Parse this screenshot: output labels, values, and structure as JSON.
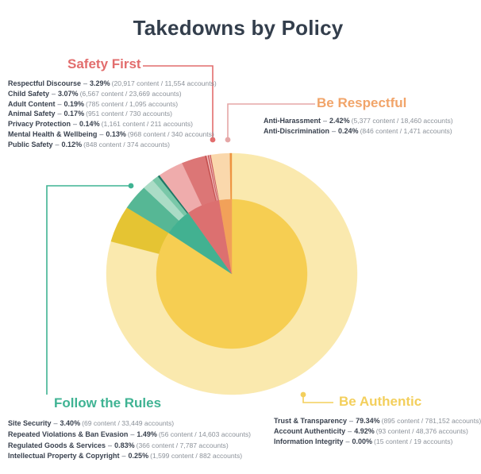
{
  "separator": "–",
  "chart_data": {
    "type": "pie",
    "variant": "two-level donut: inner disc = category totals, outer ring = individual policies",
    "title": "Takedowns by Policy",
    "units": "% of takedowns",
    "legend_position": "category labels with leader lines around chart",
    "order": [
      "be_authentic",
      "follow_the_rules",
      "safety_first",
      "be_respectful"
    ],
    "groups": {
      "safety_first": {
        "name": "Safety First",
        "label_color": "#E26D6D",
        "inner_color": "#DC7070",
        "leader_color": "#E26D6D",
        "total_pct": 7.11,
        "policies": [
          {
            "label": "Respectful Discourse",
            "pct": "3.29%",
            "value": 3.29,
            "counts": "(20,917 content / 11,554 accounts)",
            "color": "#EFACAC"
          },
          {
            "label": "Child Safety",
            "pct": "3.07%",
            "value": 3.07,
            "counts": "(6,567 content / 23,669 accounts)",
            "color": "#DC7676"
          },
          {
            "label": "Adult Content",
            "pct": "0.19%",
            "value": 0.19,
            "counts": "(785 content / 1,095 accounts)",
            "color": "#C4504F"
          },
          {
            "label": "Animal Safety",
            "pct": "0.17%",
            "value": 0.17,
            "counts": "(951 content / 730 accounts)",
            "color": "#F2BDBD"
          },
          {
            "label": "Privacy Protection",
            "pct": "0.14%",
            "value": 0.14,
            "counts": "(1,161 content / 211 accounts)",
            "color": "#C4504F"
          },
          {
            "label": "Mental Health & Wellbeing",
            "pct": "0.13%",
            "value": 0.13,
            "counts": "(968 content / 340 accounts)",
            "color": "#F2BDBD"
          },
          {
            "label": "Public Safety",
            "pct": "0.12%",
            "value": 0.12,
            "counts": "(848 content / 374 accounts)",
            "color": "#C4504F"
          }
        ]
      },
      "be_respectful": {
        "name": "Be Respectful",
        "label_color": "#F1A469",
        "inner_color": "#F2A159",
        "leader_color": "#E5A7A7",
        "total_pct": 2.66,
        "policies": [
          {
            "label": "Anti-Harassment",
            "pct": "2.42%",
            "value": 2.42,
            "counts": "(5,377 content / 18,460 accounts)",
            "color": "#FAD8AC"
          },
          {
            "label": "Anti-Discrimination",
            "pct": "0.24%",
            "value": 0.24,
            "counts": "(846 content / 1,471 accounts)",
            "color": "#ED9440"
          }
        ]
      },
      "follow_the_rules": {
        "name": "Follow the Rules",
        "label_color": "#3FB393",
        "inner_color": "#42B191",
        "leader_color": "#3FB393",
        "total_pct": 5.97,
        "policies": [
          {
            "label": "Site Security",
            "pct": "3.40%",
            "value": 3.4,
            "counts": "(69 content / 33,449 accounts)",
            "color": "#56B795"
          },
          {
            "label": "Repeated Violations & Ban Evasion",
            "pct": "1.49%",
            "value": 1.49,
            "counts": "(56 content / 14,603 accounts)",
            "color": "#ABDCC6"
          },
          {
            "label": "Regulated Goods & Services",
            "pct": "0.83%",
            "value": 0.83,
            "counts": "(366 content / 7,787 accounts)",
            "color": "#79C7A8"
          },
          {
            "label": "Intellectual Property & Copyright",
            "pct": "0.25%",
            "value": 0.25,
            "counts": "(1,599 content / 882 accounts)",
            "color": "#1F7765"
          }
        ]
      },
      "be_authentic": {
        "name": "Be Authentic",
        "label_color": "#F3CF5C",
        "inner_color": "#F6CE52",
        "leader_color": "#F3CF5C",
        "total_pct": 84.26,
        "policies": [
          {
            "label": "Trust & Transparency",
            "pct": "79.34%",
            "value": 79.34,
            "counts": "(895 content / 781,152 accounts)",
            "color": "#FAE9AE"
          },
          {
            "label": "Account Authenticity",
            "pct": "4.92%",
            "value": 4.92,
            "counts": "(93 content / 48,376 accounts)",
            "color": "#E5C433"
          },
          {
            "label": "Information Integrity",
            "pct": "0.00%",
            "value": 0.0,
            "counts": "(15 content / 19 accounts)",
            "color": "#F6CE52"
          }
        ]
      }
    }
  }
}
